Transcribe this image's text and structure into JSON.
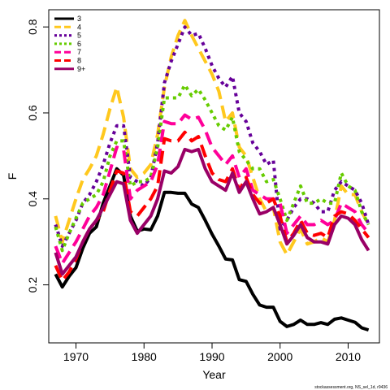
{
  "chart_data": {
    "type": "line",
    "xlabel": "Year",
    "ylabel": "F",
    "xlim": [
      1966.0,
      2014.6
    ],
    "ylim": [
      0.065,
      0.84
    ],
    "x_ticks": [
      1970,
      1980,
      1990,
      2000,
      2010
    ],
    "y_ticks": [
      0.2,
      0.4,
      0.6,
      0.8
    ],
    "grid": false,
    "legend_position": "top-left",
    "x": [
      1967,
      1968,
      1969,
      1970,
      1971,
      1972,
      1973,
      1974,
      1975,
      1976,
      1977,
      1978,
      1979,
      1980,
      1981,
      1982,
      1983,
      1984,
      1985,
      1986,
      1987,
      1988,
      1989,
      1990,
      1991,
      1992,
      1993,
      1994,
      1995,
      1996,
      1997,
      1998,
      1999,
      2000,
      2001,
      2002,
      2003,
      2004,
      2005,
      2006,
      2007,
      2008,
      2009,
      2010,
      2011,
      2012,
      2013
    ],
    "series": [
      {
        "name": "3",
        "color": "#000000",
        "dash": "solid",
        "values": [
          0.225,
          0.195,
          0.22,
          0.24,
          0.285,
          0.32,
          0.335,
          0.39,
          0.43,
          0.47,
          0.455,
          0.36,
          0.325,
          0.33,
          0.328,
          0.36,
          0.415,
          0.415,
          0.413,
          0.413,
          0.388,
          0.38,
          0.35,
          0.318,
          0.29,
          0.26,
          0.258,
          0.212,
          0.208,
          0.178,
          0.153,
          0.148,
          0.148,
          0.115,
          0.103,
          0.108,
          0.118,
          0.108,
          0.108,
          0.112,
          0.108,
          0.12,
          0.123,
          0.118,
          0.113,
          0.1,
          0.095
        ]
      },
      {
        "name": "4",
        "color": "#FFC81E",
        "dash": "long",
        "values": [
          0.36,
          0.3,
          0.35,
          0.4,
          0.445,
          0.47,
          0.5,
          0.55,
          0.61,
          0.66,
          0.59,
          0.47,
          0.45,
          0.46,
          0.48,
          0.55,
          0.66,
          0.73,
          0.78,
          0.815,
          0.78,
          0.75,
          0.72,
          0.69,
          0.65,
          0.58,
          0.6,
          0.52,
          0.5,
          0.45,
          0.4,
          0.37,
          0.38,
          0.3,
          0.27,
          0.3,
          0.33,
          0.295,
          0.3,
          0.31,
          0.3,
          0.35,
          0.43,
          0.41,
          0.41,
          0.37,
          0.34
        ]
      },
      {
        "name": "5",
        "color": "#660099",
        "dash": "dot",
        "values": [
          0.34,
          0.29,
          0.32,
          0.35,
          0.39,
          0.41,
          0.44,
          0.48,
          0.53,
          0.57,
          0.57,
          0.45,
          0.44,
          0.43,
          0.45,
          0.53,
          0.67,
          0.72,
          0.76,
          0.8,
          0.78,
          0.785,
          0.75,
          0.71,
          0.68,
          0.66,
          0.685,
          0.6,
          0.58,
          0.53,
          0.51,
          0.48,
          0.49,
          0.33,
          0.35,
          0.38,
          0.4,
          0.4,
          0.39,
          0.37,
          0.37,
          0.42,
          0.44,
          0.43,
          0.42,
          0.39,
          0.34
        ]
      },
      {
        "name": "6",
        "color": "#66CC00",
        "dash": "dot",
        "values": [
          0.335,
          0.28,
          0.32,
          0.355,
          0.39,
          0.4,
          0.41,
          0.44,
          0.5,
          0.535,
          0.535,
          0.43,
          0.44,
          0.44,
          0.45,
          0.52,
          0.635,
          0.635,
          0.635,
          0.665,
          0.64,
          0.655,
          0.63,
          0.6,
          0.57,
          0.56,
          0.59,
          0.51,
          0.49,
          0.47,
          0.47,
          0.44,
          0.445,
          0.4,
          0.35,
          0.39,
          0.43,
          0.39,
          0.39,
          0.4,
          0.39,
          0.39,
          0.46,
          0.43,
          0.42,
          0.37,
          0.34
        ]
      },
      {
        "name": "7",
        "color": "#FF0099",
        "dash": "long",
        "values": [
          0.29,
          0.25,
          0.275,
          0.3,
          0.33,
          0.36,
          0.38,
          0.41,
          0.465,
          0.52,
          0.515,
          0.4,
          0.42,
          0.43,
          0.44,
          0.48,
          0.58,
          0.575,
          0.575,
          0.595,
          0.585,
          0.59,
          0.56,
          0.52,
          0.5,
          0.48,
          0.5,
          0.45,
          0.47,
          0.42,
          0.41,
          0.4,
          0.4,
          0.39,
          0.32,
          0.34,
          0.36,
          0.34,
          0.34,
          0.35,
          0.34,
          0.35,
          0.39,
          0.38,
          0.37,
          0.34,
          0.32
        ]
      },
      {
        "name": "8",
        "color": "#FF0000",
        "dash": "long",
        "values": [
          0.245,
          0.21,
          0.23,
          0.26,
          0.3,
          0.33,
          0.35,
          0.37,
          0.42,
          0.465,
          0.46,
          0.37,
          0.36,
          0.38,
          0.4,
          0.43,
          0.54,
          0.535,
          0.535,
          0.555,
          0.535,
          0.545,
          0.5,
          0.46,
          0.445,
          0.44,
          0.47,
          0.42,
          0.45,
          0.41,
          0.39,
          0.39,
          0.4,
          0.36,
          0.3,
          0.32,
          0.35,
          0.32,
          0.315,
          0.32,
          0.31,
          0.36,
          0.37,
          0.365,
          0.35,
          0.33,
          0.31
        ]
      },
      {
        "name": "9+",
        "color": "#990066",
        "dash": "solid",
        "values": [
          0.275,
          0.225,
          0.245,
          0.265,
          0.3,
          0.33,
          0.35,
          0.38,
          0.41,
          0.44,
          0.435,
          0.35,
          0.32,
          0.34,
          0.36,
          0.4,
          0.465,
          0.46,
          0.475,
          0.515,
          0.51,
          0.515,
          0.47,
          0.44,
          0.43,
          0.42,
          0.46,
          0.415,
          0.44,
          0.4,
          0.365,
          0.37,
          0.38,
          0.34,
          0.295,
          0.315,
          0.34,
          0.31,
          0.3,
          0.3,
          0.295,
          0.34,
          0.36,
          0.355,
          0.34,
          0.305,
          0.28
        ]
      }
    ]
  },
  "footnote": "stockassessment.org, NS_sel_1d, r9436"
}
